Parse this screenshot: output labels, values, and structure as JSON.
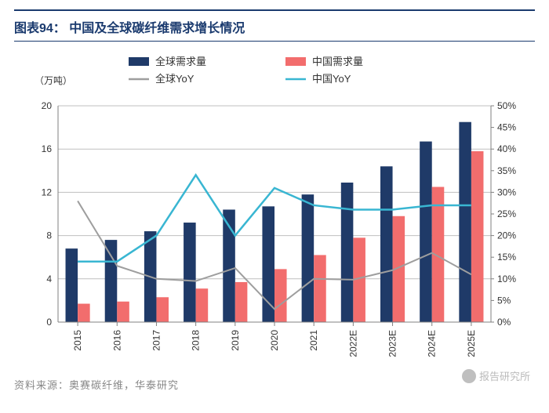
{
  "title_prefix": "图表94：",
  "title_text": "中国及全球碳纤维需求增长情况",
  "title_fontsize": 16,
  "title_color": "#1a3a6e",
  "source_label": "资料来源：奥赛碳纤维，华泰研究",
  "watermark_text": "报告研究所",
  "chart": {
    "type": "bar+line-dual-axis",
    "background_color": "#ffffff",
    "grid_color": "#bfbfbf",
    "axis_color": "#808080",
    "tick_fontsize": 12,
    "y_left_unit": "（万吨）",
    "categories": [
      "2015",
      "2016",
      "2017",
      "2018",
      "2019",
      "2020",
      "2021",
      "2022E",
      "2023E",
      "2024E",
      "2025E"
    ],
    "y_left": {
      "min": 0,
      "max": 20,
      "step": 4
    },
    "y_right": {
      "min": 0,
      "max": 0.5,
      "step": 0.05,
      "format": "percent"
    },
    "legend": {
      "position": "top",
      "items": [
        {
          "label": "全球需求量",
          "type": "bar",
          "color": "#1f3a68"
        },
        {
          "label": "中国需求量",
          "type": "bar",
          "color": "#f26d6d"
        },
        {
          "label": "全球YoY",
          "type": "line",
          "color": "#9e9e9e"
        },
        {
          "label": "中国YoY",
          "type": "line",
          "color": "#39b6d2"
        }
      ]
    },
    "series": {
      "global_demand": {
        "color": "#1f3a68",
        "values": [
          6.8,
          7.6,
          8.4,
          9.2,
          10.4,
          10.7,
          11.8,
          12.9,
          14.4,
          16.7,
          18.5
        ]
      },
      "china_demand": {
        "color": "#f26d6d",
        "values": [
          1.7,
          1.9,
          2.3,
          3.1,
          3.7,
          4.9,
          6.2,
          7.8,
          9.8,
          12.5,
          15.8
        ]
      },
      "global_yoy": {
        "color": "#9e9e9e",
        "width": 2,
        "values": [
          0.28,
          0.13,
          0.1,
          0.095,
          0.125,
          0.03,
          0.1,
          0.098,
          0.12,
          0.16,
          0.11
        ]
      },
      "china_yoy": {
        "color": "#39b6d2",
        "width": 2.5,
        "values": [
          0.14,
          0.14,
          0.2,
          0.34,
          0.2,
          0.31,
          0.27,
          0.26,
          0.26,
          0.27,
          0.27
        ]
      }
    },
    "bar_group_width": 0.62,
    "x_label_rotation": -90
  }
}
